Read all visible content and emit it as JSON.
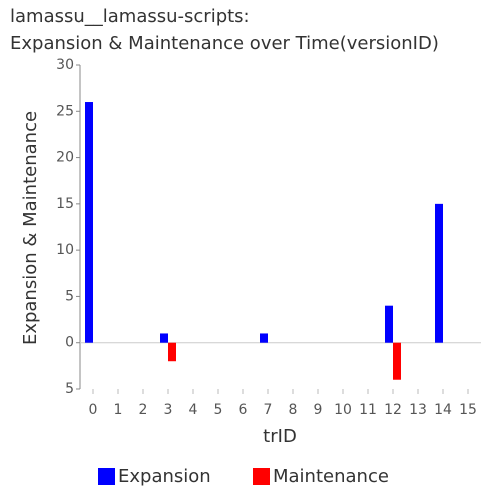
{
  "chart_data": {
    "type": "bar",
    "title": [
      "lamassu__lamassu-scripts:",
      "Expansion & Maintenance over Time(versionID)"
    ],
    "x_label": "trID",
    "y_label": "Expansion & Maintenance",
    "categories": [
      "0",
      "1",
      "2",
      "3",
      "4",
      "5",
      "6",
      "7",
      "8",
      "9",
      "10",
      "11",
      "12",
      "13",
      "14",
      "15"
    ],
    "series": [
      {
        "name": "Expansion",
        "color": "#0000ff",
        "values": [
          26,
          null,
          null,
          1,
          null,
          null,
          null,
          1,
          null,
          null,
          null,
          null,
          4,
          null,
          15,
          null
        ]
      },
      {
        "name": "Maintenance",
        "color": "#ff0000",
        "values": [
          null,
          null,
          null,
          -2,
          null,
          null,
          null,
          null,
          null,
          null,
          null,
          null,
          -4,
          null,
          null,
          null
        ]
      }
    ],
    "ylim": [
      -5,
      30
    ],
    "yticks": [
      {
        "value": -5,
        "label": "5"
      },
      0,
      5,
      10,
      15,
      20,
      25,
      30
    ],
    "grid": false,
    "legend": "bottom"
  }
}
